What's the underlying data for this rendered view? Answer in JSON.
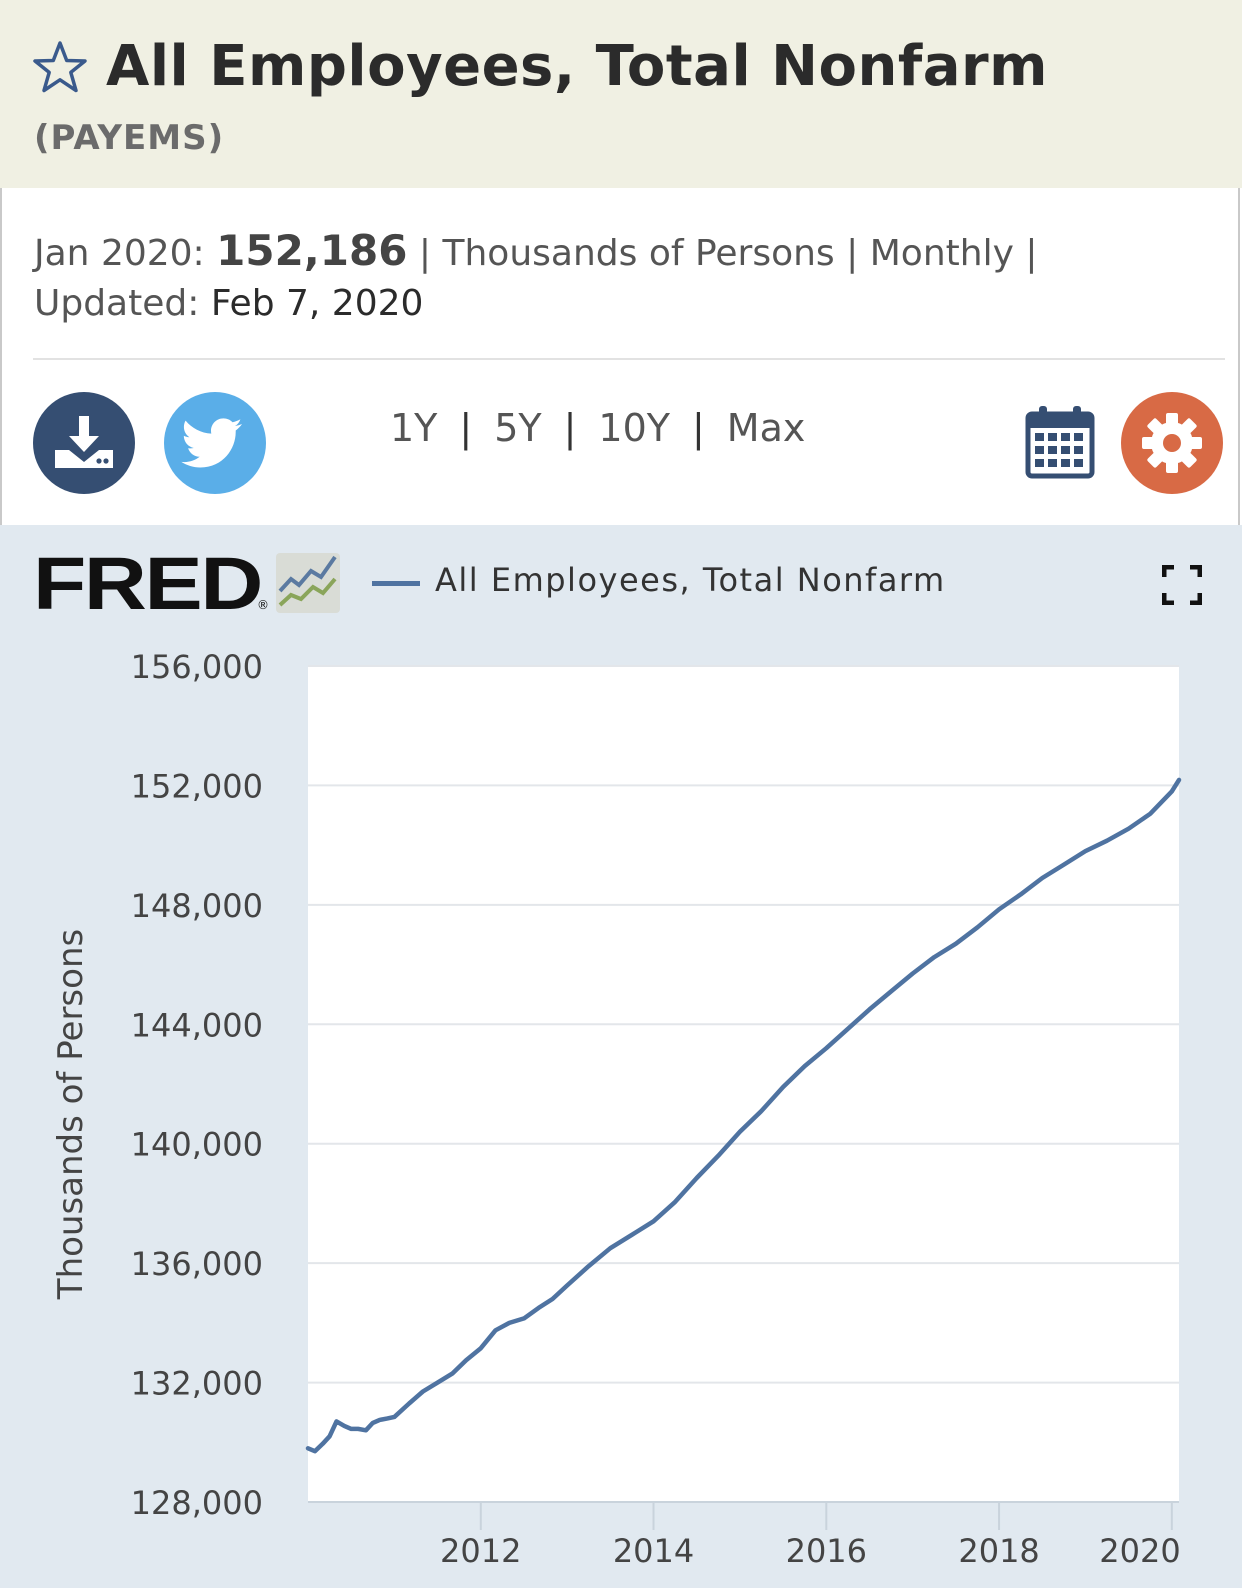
{
  "header": {
    "title": "All Employees, Total Nonfarm",
    "series_id": "(PAYEMS)"
  },
  "summary": {
    "period": "Jan 2020:",
    "value": "152,186",
    "units": "Thousands of Persons",
    "frequency": "Monthly",
    "updated_label": "Updated:",
    "updated_date": "Feb 7, 2020",
    "separator": "|"
  },
  "toolbar": {
    "download_icon": "download-icon",
    "twitter_icon": "twitter-icon",
    "calendar_icon": "calendar-icon",
    "settings_icon": "gear-icon",
    "ranges": [
      "1Y",
      "5Y",
      "10Y",
      "Max"
    ]
  },
  "chart_panel": {
    "logo_text": "FRED",
    "logo_mark": "®",
    "fullscreen_icon": "fullscreen-icon"
  },
  "colors": {
    "header_bg": "#f0f0e3",
    "panel_bg": "#e1e9f0",
    "line": "#4f73a1",
    "download": "#354e72",
    "twitter": "#5aaee8",
    "settings": "#d86a45"
  },
  "chart_data": {
    "type": "line",
    "title": "",
    "legend": [
      "All Employees, Total Nonfarm"
    ],
    "xlabel": "",
    "ylabel": "Thousands of Persons",
    "ylim": [
      128000,
      156000
    ],
    "yticks": [
      128000,
      132000,
      136000,
      140000,
      144000,
      148000,
      152000,
      156000
    ],
    "ytick_labels": [
      "128,000",
      "132,000",
      "136,000",
      "140,000",
      "144,000",
      "148,000",
      "152,000",
      "156,000"
    ],
    "xlim": [
      2010.0,
      2020.083
    ],
    "xticks": [
      2012,
      2014,
      2016,
      2018,
      2020
    ],
    "xtick_labels": [
      "2012",
      "2014",
      "2016",
      "2018",
      "2020"
    ],
    "series": [
      {
        "name": "All Employees, Total Nonfarm",
        "x": [
          2010.0,
          2010.08,
          2010.17,
          2010.25,
          2010.33,
          2010.42,
          2010.5,
          2010.58,
          2010.67,
          2010.75,
          2010.83,
          2010.92,
          2011.0,
          2011.17,
          2011.33,
          2011.5,
          2011.67,
          2011.83,
          2012.0,
          2012.17,
          2012.33,
          2012.5,
          2012.67,
          2012.83,
          2013.0,
          2013.25,
          2013.5,
          2013.75,
          2014.0,
          2014.25,
          2014.5,
          2014.75,
          2015.0,
          2015.25,
          2015.5,
          2015.75,
          2016.0,
          2016.25,
          2016.5,
          2016.75,
          2017.0,
          2017.25,
          2017.5,
          2017.75,
          2018.0,
          2018.25,
          2018.5,
          2018.75,
          2019.0,
          2019.25,
          2019.5,
          2019.75,
          2020.0,
          2020.083
        ],
        "y": [
          129800,
          129700,
          129950,
          130200,
          130700,
          130550,
          130450,
          130450,
          130400,
          130650,
          130750,
          130800,
          130850,
          131300,
          131700,
          132000,
          132300,
          132750,
          133150,
          133750,
          134000,
          134150,
          134500,
          134800,
          135250,
          135900,
          136500,
          136950,
          137400,
          138050,
          138850,
          139600,
          140400,
          141100,
          141900,
          142600,
          143200,
          143850,
          144500,
          145100,
          145700,
          146250,
          146700,
          147250,
          147850,
          148350,
          148900,
          149350,
          149800,
          150150,
          150550,
          151050,
          151800,
          152186
        ]
      }
    ]
  }
}
